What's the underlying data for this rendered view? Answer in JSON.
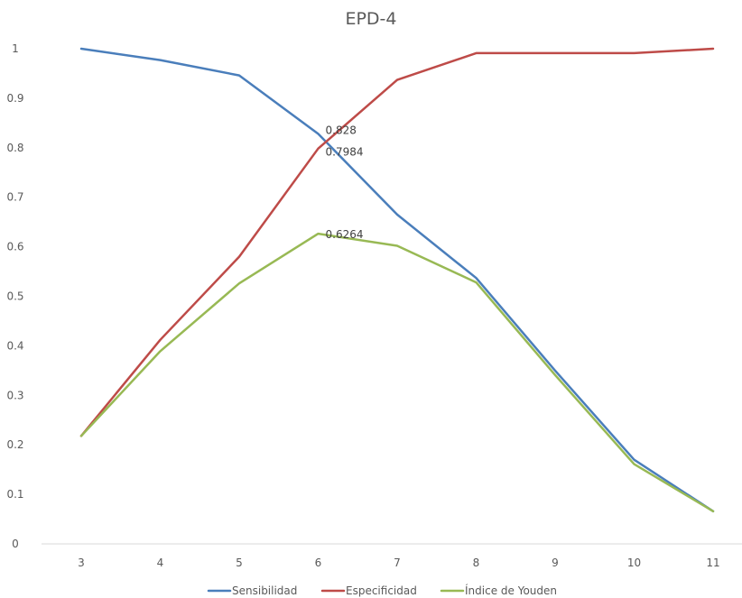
{
  "chart_data": {
    "type": "line",
    "title": "EPD-4",
    "x": [
      3,
      4,
      5,
      6,
      7,
      8,
      9,
      10,
      11
    ],
    "x_tick_labels": [
      "3",
      "4",
      "5",
      "6",
      "7",
      "8",
      "9",
      "10",
      "11"
    ],
    "y_tick_labels": [
      "0",
      "0.1",
      "0.2",
      "0.3",
      "0.4",
      "0.5",
      "0.6",
      "0.7",
      "0.8",
      "0.9",
      "1"
    ],
    "ylim": [
      0,
      1
    ],
    "y_ticks": [
      0,
      0.1,
      0.2,
      0.3,
      0.4,
      0.5,
      0.6,
      0.7,
      0.8,
      0.9,
      1
    ],
    "grid": false,
    "legend_position": "bottom",
    "series": [
      {
        "name": "Sensibilidad",
        "color": "#4a7ebb",
        "values": [
          1.0,
          0.977,
          0.946,
          0.828,
          0.665,
          0.537,
          0.35,
          0.17,
          0.066
        ]
      },
      {
        "name": "Especificidad",
        "color": "#be4b48",
        "values": [
          0.218,
          0.412,
          0.58,
          0.7984,
          0.937,
          0.991,
          0.991,
          0.991,
          1.0
        ]
      },
      {
        "name": "Índice de Youden",
        "color": "#98b954",
        "values": [
          0.218,
          0.389,
          0.526,
          0.6264,
          0.602,
          0.528,
          0.341,
          0.161,
          0.066
        ]
      }
    ],
    "annotations": [
      {
        "series": 0,
        "x": 6,
        "text": "0.828"
      },
      {
        "series": 1,
        "x": 6,
        "text": "0.7984"
      },
      {
        "series": 2,
        "x": 6,
        "text": "0.6264"
      }
    ]
  }
}
